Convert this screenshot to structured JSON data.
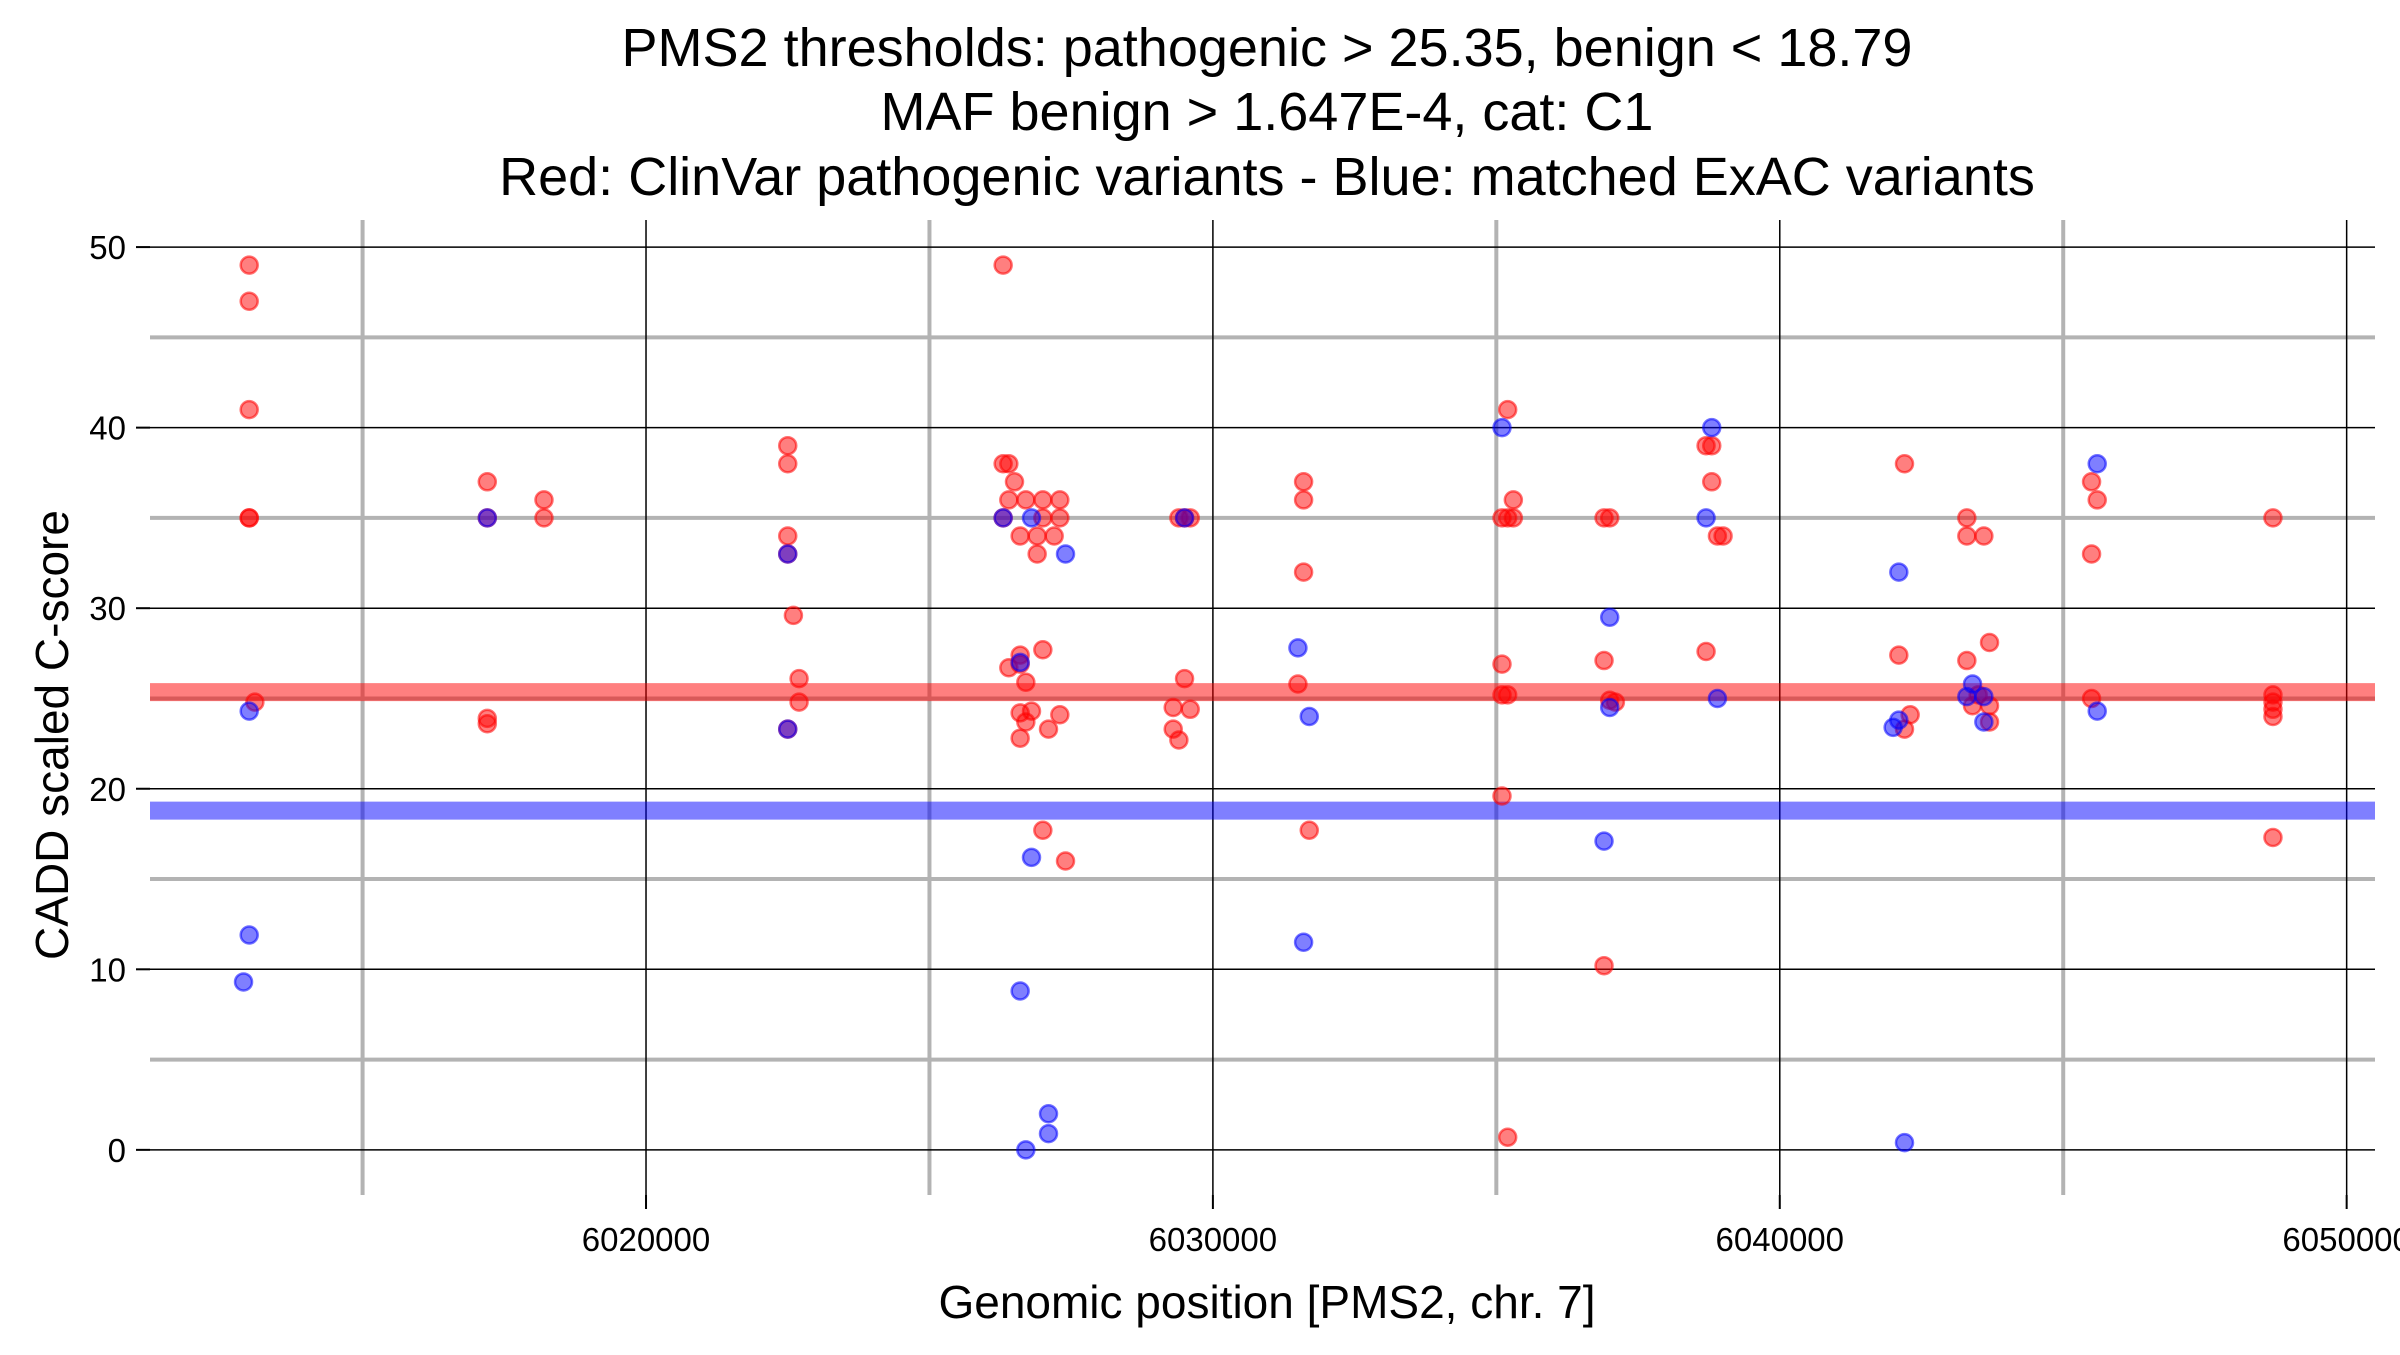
{
  "chart_data": {
    "type": "scatter",
    "title": [
      "PMS2 thresholds: pathogenic > 25.35, benign < 18.79",
      "MAF benign > 1.647E-4, cat: C1",
      "Red: ClinVar pathogenic variants - Blue: matched ExAC variants"
    ],
    "xlabel": "Genomic position [PMS2, chr. 7]",
    "ylabel": "CADD scaled C-score",
    "xlim": [
      6011250,
      6050500
    ],
    "ylim": [
      -2.5,
      51.5
    ],
    "x_ticks": [
      6020000,
      6030000,
      6040000,
      6050000
    ],
    "x_tick_labels": [
      "6020000",
      "6030000",
      "6040000",
      "6050000"
    ],
    "x_minor_ticks": [
      6015000,
      6025000,
      6035000,
      6045000
    ],
    "y_ticks": [
      0,
      10,
      20,
      30,
      40,
      50
    ],
    "y_tick_labels": [
      "0",
      "10",
      "20",
      "30",
      "40",
      "50"
    ],
    "y_minor_ticks": [
      5,
      15,
      25,
      35,
      45
    ],
    "grid": true,
    "legend": "none",
    "thresholds": [
      {
        "name": "pathogenic",
        "value": 25.35,
        "color": "#ff0000"
      },
      {
        "name": "benign",
        "value": 18.79,
        "color": "#0000ff"
      }
    ],
    "series": [
      {
        "name": "ClinVar pathogenic variants",
        "color": "#ff0000",
        "points": [
          [
            6013000,
            49
          ],
          [
            6013000,
            47
          ],
          [
            6013000,
            41
          ],
          [
            6013000,
            35
          ],
          [
            6013000,
            35
          ],
          [
            6013100,
            24.8
          ],
          [
            6017200,
            37
          ],
          [
            6017200,
            35
          ],
          [
            6017200,
            23.9
          ],
          [
            6017200,
            23.6
          ],
          [
            6018200,
            36
          ],
          [
            6018200,
            35
          ],
          [
            6022500,
            39
          ],
          [
            6022500,
            38
          ],
          [
            6022500,
            34
          ],
          [
            6022500,
            33
          ],
          [
            6022500,
            23.3
          ],
          [
            6022600,
            29.6
          ],
          [
            6022700,
            26.1
          ],
          [
            6022700,
            24.8
          ],
          [
            6026300,
            49
          ],
          [
            6026300,
            38
          ],
          [
            6026400,
            38
          ],
          [
            6026400,
            36
          ],
          [
            6026300,
            35
          ],
          [
            6026500,
            37
          ],
          [
            6026700,
            36
          ],
          [
            6026600,
            34
          ],
          [
            6027000,
            36
          ],
          [
            6027000,
            35
          ],
          [
            6027300,
            36
          ],
          [
            6027300,
            35
          ],
          [
            6026900,
            34
          ],
          [
            6027200,
            34
          ],
          [
            6026900,
            33
          ],
          [
            6026400,
            26.7
          ],
          [
            6026600,
            27.4
          ],
          [
            6026600,
            26.9
          ],
          [
            6026700,
            25.9
          ],
          [
            6026600,
            24.2
          ],
          [
            6026700,
            23.7
          ],
          [
            6026600,
            22.8
          ],
          [
            6026800,
            24.3
          ],
          [
            6027000,
            27.7
          ],
          [
            6027100,
            23.3
          ],
          [
            6027300,
            24.1
          ],
          [
            6027000,
            17.7
          ],
          [
            6027400,
            16
          ],
          [
            6029400,
            35
          ],
          [
            6029500,
            35
          ],
          [
            6029600,
            35
          ],
          [
            6029300,
            24.5
          ],
          [
            6029600,
            24.4
          ],
          [
            6029500,
            26.1
          ],
          [
            6029300,
            23.3
          ],
          [
            6029400,
            22.7
          ],
          [
            6031600,
            37
          ],
          [
            6031600,
            36
          ],
          [
            6031600,
            32
          ],
          [
            6031500,
            25.8
          ],
          [
            6031700,
            17.7
          ],
          [
            6035200,
            41
          ],
          [
            6035100,
            35
          ],
          [
            6035200,
            35
          ],
          [
            6035300,
            35
          ],
          [
            6035300,
            36
          ],
          [
            6035100,
            26.9
          ],
          [
            6035100,
            25.2
          ],
          [
            6035200,
            25.2
          ],
          [
            6035100,
            19.6
          ],
          [
            6035200,
            0.7
          ],
          [
            6036900,
            35
          ],
          [
            6037000,
            35
          ],
          [
            6036900,
            27.1
          ],
          [
            6037000,
            24.9
          ],
          [
            6037100,
            24.8
          ],
          [
            6036900,
            10.2
          ],
          [
            6038700,
            39
          ],
          [
            6038800,
            39
          ],
          [
            6038800,
            37
          ],
          [
            6038900,
            34
          ],
          [
            6039000,
            34
          ],
          [
            6038700,
            27.6
          ],
          [
            6042100,
            27.4
          ],
          [
            6042200,
            38
          ],
          [
            6042300,
            24.1
          ],
          [
            6042200,
            23.3
          ],
          [
            6043300,
            35
          ],
          [
            6043300,
            34
          ],
          [
            6043300,
            27.1
          ],
          [
            6043600,
            34
          ],
          [
            6043700,
            28.1
          ],
          [
            6043500,
            25.2
          ],
          [
            6043400,
            24.6
          ],
          [
            6043700,
            24.6
          ],
          [
            6043700,
            23.7
          ],
          [
            6045500,
            37
          ],
          [
            6045600,
            36
          ],
          [
            6045500,
            33
          ],
          [
            6045500,
            25
          ],
          [
            6048700,
            35
          ],
          [
            6048700,
            25.2
          ],
          [
            6048700,
            24.8
          ],
          [
            6048700,
            24.4
          ],
          [
            6048700,
            24
          ],
          [
            6048700,
            17.3
          ]
        ]
      },
      {
        "name": "matched ExAC variants",
        "color": "#0000ff",
        "points": [
          [
            6013000,
            24.3
          ],
          [
            6013000,
            11.9
          ],
          [
            6012900,
            9.3
          ],
          [
            6017200,
            35
          ],
          [
            6022500,
            33
          ],
          [
            6022500,
            23.3
          ],
          [
            6026300,
            35
          ],
          [
            6026600,
            27
          ],
          [
            6026800,
            35
          ],
          [
            6027400,
            33
          ],
          [
            6026800,
            16.2
          ],
          [
            6026600,
            8.8
          ],
          [
            6027100,
            2
          ],
          [
            6027100,
            0.9
          ],
          [
            6026700,
            0
          ],
          [
            6029500,
            35
          ],
          [
            6031500,
            27.8
          ],
          [
            6031700,
            24
          ],
          [
            6031600,
            11.5
          ],
          [
            6035100,
            40
          ],
          [
            6037000,
            29.5
          ],
          [
            6037000,
            24.5
          ],
          [
            6036900,
            17.1
          ],
          [
            6038800,
            40
          ],
          [
            6038700,
            35
          ],
          [
            6038900,
            25
          ],
          [
            6042100,
            32
          ],
          [
            6042100,
            23.8
          ],
          [
            6042000,
            23.4
          ],
          [
            6042200,
            0.4
          ],
          [
            6043400,
            25.8
          ],
          [
            6043300,
            25.1
          ],
          [
            6043600,
            25.1
          ],
          [
            6043600,
            23.7
          ],
          [
            6045600,
            38
          ],
          [
            6045600,
            24.3
          ]
        ]
      }
    ]
  }
}
